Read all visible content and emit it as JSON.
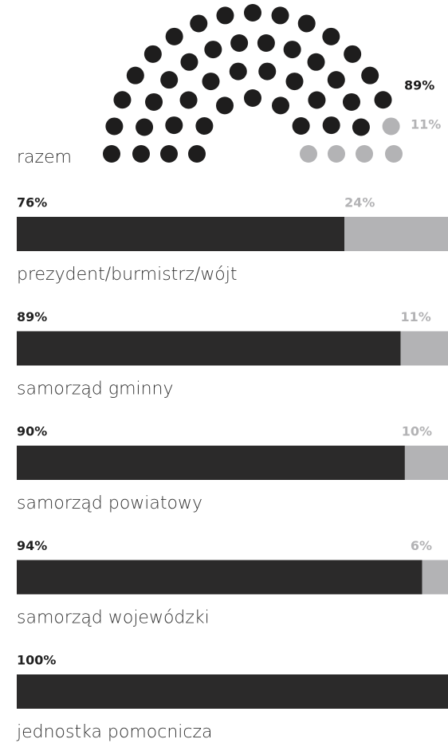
{
  "chart_data": [
    {
      "type": "parliament",
      "label": "razem",
      "values": [
        89,
        11
      ],
      "value_labels": [
        "89%",
        "11%"
      ],
      "colors": [
        "#1e1d1d",
        "#b3b3b5"
      ]
    },
    {
      "type": "stacked_bar",
      "categories": [
        "prezydent/burmistrz/wójt",
        "samorząd gminny",
        "samorząd powiatowy",
        "samorząd wojewódzki",
        "jednostka pomocnicza"
      ],
      "xlim": [
        0,
        100
      ],
      "series": [
        {
          "color": "#2b2a2a",
          "values": [
            76,
            89,
            90,
            94,
            100
          ],
          "value_labels": [
            "76%",
            "89%",
            "90%",
            "94%",
            "100%"
          ]
        },
        {
          "color": "#b3b3b5",
          "values": [
            24,
            11,
            10,
            6,
            0
          ],
          "value_labels": [
            "24%",
            "11%",
            "10%",
            "6%",
            null
          ]
        }
      ]
    }
  ]
}
